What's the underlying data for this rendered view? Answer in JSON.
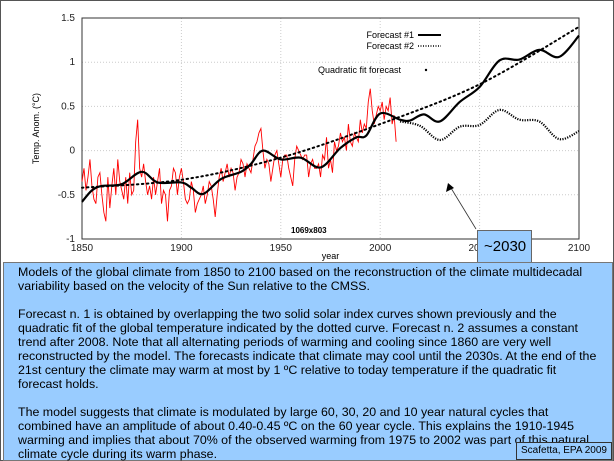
{
  "chart_data": {
    "type": "line",
    "xlabel": "year",
    "ylabel": "Temp. Anom. (°C)",
    "xlim": [
      1850,
      2100
    ],
    "ylim": [
      -1,
      1.5
    ],
    "xticks": [
      1850,
      1900,
      1950,
      2000,
      2050,
      2100
    ],
    "yticks": [
      -1,
      -0.5,
      0,
      0.5,
      1,
      1.5
    ],
    "ytick_labels": [
      "-1",
      "-0.5",
      "0",
      "0.5",
      "1",
      "1.5"
    ],
    "grid": true,
    "legend": {
      "placement": "top-right",
      "entries": [
        "Forecast #1",
        "Forecast #2"
      ]
    },
    "quadratic_label": "Quadratic fit forecast",
    "watermark": "1069x803",
    "annotation": "~2030",
    "colors": {
      "observed": "#ff0000",
      "model": "#000000"
    },
    "series": [
      {
        "start_year": 1850,
        "values": [
          -0.35,
          -0.2,
          -0.45,
          -0.3,
          -0.1,
          -0.4,
          -0.55,
          -0.6,
          -0.3,
          -0.25,
          -0.5,
          -0.7,
          -0.8,
          -0.3,
          -0.65,
          -0.4,
          -0.2,
          -0.5,
          -0.1,
          -0.35,
          -0.45,
          -0.55,
          -0.3,
          -0.6,
          -0.25,
          -0.5,
          -0.45,
          0.1,
          0.35,
          -0.2,
          -0.3,
          -0.15,
          -0.35,
          -0.5,
          -0.4,
          -0.55,
          -0.3,
          -0.5,
          -0.35,
          -0.2,
          -0.6,
          -0.45,
          -0.5,
          -0.8,
          -0.45,
          -0.4,
          -0.2,
          -0.25,
          -0.5,
          -0.3,
          -0.2,
          -0.35,
          -0.55,
          -0.6,
          -0.55,
          -0.35,
          -0.45,
          -0.7,
          -0.6,
          -0.55,
          -0.5,
          -0.4,
          -0.6,
          -0.5,
          -0.35,
          -0.4,
          -0.55,
          -0.75,
          -0.5,
          -0.3,
          -0.2,
          -0.35,
          -0.25,
          -0.15,
          -0.3,
          -0.2,
          -0.25,
          -0.45,
          -0.3,
          -0.25,
          -0.1,
          -0.15,
          -0.3,
          -0.15,
          -0.2,
          -0.25,
          -0.1,
          0.05,
          0.1,
          0.2,
          0.25,
          0.0,
          -0.2,
          -0.1,
          -0.15,
          -0.35,
          -0.2,
          -0.05,
          0.0,
          -0.15,
          -0.3,
          -0.1,
          -0.05,
          -0.05,
          -0.2,
          -0.3,
          -0.4,
          -0.1,
          0.05,
          0.0,
          -0.05,
          -0.1,
          -0.05,
          -0.05,
          -0.3,
          -0.15,
          -0.1,
          -0.2,
          -0.2,
          -0.15,
          -0.3,
          -0.05,
          -0.1,
          0.15,
          -0.2,
          -0.1,
          -0.25,
          0.1,
          0.0,
          0.05,
          0.2,
          0.1,
          0.15,
          0.0,
          0.3,
          0.1,
          0.05,
          0.2,
          0.15,
          0.1,
          0.35,
          0.2,
          0.3,
          0.25,
          0.55,
          0.7,
          0.45,
          0.3,
          0.4,
          0.5,
          0.45,
          0.55,
          0.35,
          0.5,
          0.45,
          0.6,
          0.3,
          0.4,
          0.1
        ]
      },
      {
        "name": "Forecast #1",
        "years": [
          1850,
          1855,
          1860,
          1870,
          1880,
          1888,
          1900,
          1905,
          1911,
          1920,
          1930,
          1935,
          1941,
          1950,
          1960,
          1970,
          1980,
          1988,
          1993,
          2000,
          2010,
          2015,
          2022,
          2030,
          2040,
          2050,
          2060,
          2070,
          2080,
          2090,
          2100
        ],
        "values": [
          -0.58,
          -0.45,
          -0.4,
          -0.38,
          -0.24,
          -0.36,
          -0.36,
          -0.42,
          -0.49,
          -0.32,
          -0.24,
          -0.15,
          0.0,
          -0.1,
          -0.08,
          -0.19,
          0.03,
          0.15,
          0.17,
          0.42,
          0.35,
          0.34,
          0.41,
          0.33,
          0.55,
          0.72,
          1.02,
          1.03,
          1.14,
          1.06,
          1.3
        ]
      },
      {
        "name": "Forecast #2",
        "years": [
          2010,
          2020,
          2030,
          2040,
          2050,
          2060,
          2070,
          2080,
          2090,
          2100
        ],
        "values": [
          0.33,
          0.28,
          0.12,
          0.27,
          0.29,
          0.46,
          0.35,
          0.33,
          0.13,
          0.22
        ]
      },
      {
        "name": "Quadratic fit forecast",
        "years": [
          1850,
          1900,
          1950,
          2000,
          2050,
          2100
        ],
        "values": [
          -0.42,
          -0.33,
          -0.08,
          0.3,
          0.75,
          1.4
        ]
      }
    ]
  },
  "caption": {
    "p1": "Models of the global climate from 1850 to 2100 based on the reconstruction of the climate multidecadal variability based on the velocity of the Sun relative to the CMSS.",
    "p2": "Forecast n. 1 is obtained by overlapping the two solid solar index curves shown previously and the quadratic fit of the global temperature indicated by the dotted curve. Forecast n. 2 assumes a constant trend after 2008. Note that all alternating periods of warming and cooling since 1860 are very well reconstructed by the model. The forecasts indicate that climate may cool until the 2030s. At the end of the 21st century the climate may warm at most by 1 ºC relative to today temperature if the quadratic fit forecast holds.",
    "p3": "The model suggests that climate is modulated by large 60, 30, 20 and 10 year natural cycles that combined have an amplitude of about 0.40-0.45  ºC on the 60 year cycle. This explains the 1910-1945 warming and implies that about 70% of the observed warming from 1975 to 2002 was part of this natural climate cycle during its warm phase.",
    "credit": "Scafetta, EPA 2009"
  }
}
